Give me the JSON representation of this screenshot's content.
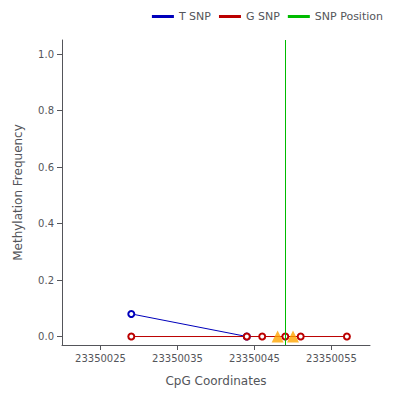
{
  "chart_data": {
    "type": "line",
    "xlabel": "CpG Coordinates",
    "ylabel": "Methylation Frequency",
    "xlim": [
      23350020,
      23350060
    ],
    "ylim": [
      -0.03,
      1.05
    ],
    "xticks": [
      23350025,
      23350035,
      23350045,
      23350055
    ],
    "yticks": [
      {
        "value": 0.0,
        "label": "0.0"
      },
      0.2,
      0.4,
      0.6,
      0.8,
      {
        "value": 1.0,
        "label": "1.0"
      }
    ],
    "grid": false,
    "legend": "upper right",
    "series": [
      {
        "name": "T SNP",
        "type": "line",
        "color": "#0000bb",
        "marker": "open_circle",
        "x": [
          23350029,
          23350044
        ],
        "values": [
          0.08,
          0.0
        ]
      },
      {
        "name": "G SNP",
        "type": "line",
        "color": "#bb0000",
        "marker": "open_circle",
        "x": [
          23350029,
          23350044,
          23350046,
          23350049,
          23350051,
          23350057
        ],
        "values": [
          0.0,
          0.0,
          0.0,
          0.0,
          0.0,
          0.0
        ]
      },
      {
        "name": "SNP Position",
        "type": "vline",
        "color": "#00bb00",
        "x": [
          23350049
        ]
      },
      {
        "type": "scatter",
        "color": "#ffa500",
        "marker": "triangle",
        "x": [
          23350048,
          23350050
        ],
        "values": [
          0.0,
          0.0
        ]
      }
    ]
  }
}
